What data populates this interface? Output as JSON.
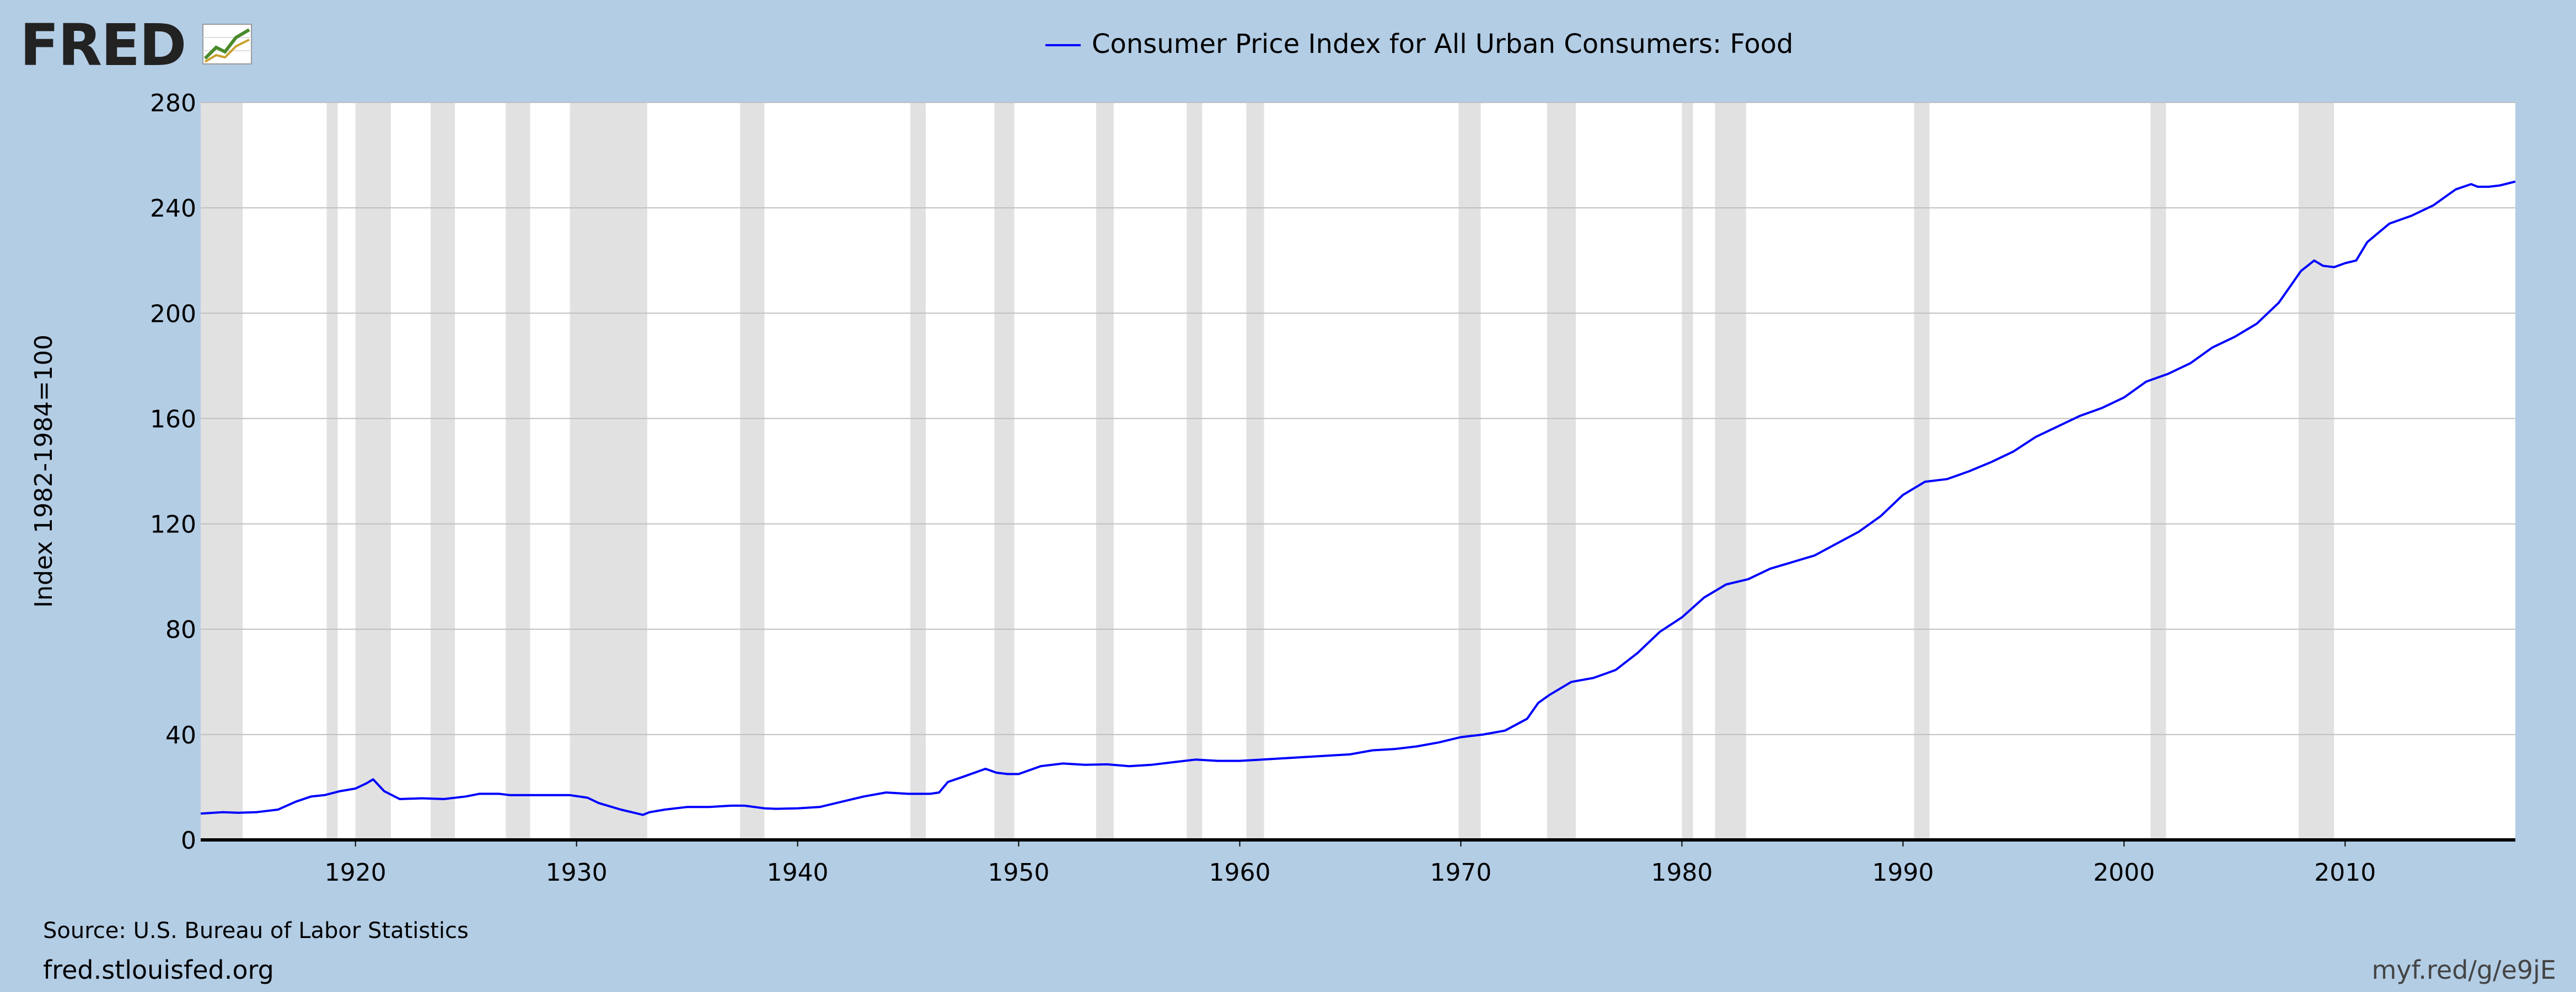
{
  "brand": {
    "logo_text": "FRED",
    "icon": "fred-line-chart-icon"
  },
  "source": "Source: U.S. Bureau of Labor Statistics",
  "site": "fred.stlouisfed.org",
  "short_link": "myf.red/g/e9jE",
  "colors": {
    "background": "#b3cde5",
    "plot_background": "#ffffff",
    "line": "#0000ff",
    "recession_shading": "#e1e1e1",
    "grid": "#c0c0c0",
    "text": "#000000"
  },
  "chart_data": {
    "type": "line",
    "title": "",
    "legend_position": "top-center",
    "xlabel": "",
    "ylabel": "Index 1982-1984=100",
    "xlim": [
      1913.0,
      2017.7
    ],
    "ylim": [
      0,
      280
    ],
    "yticks": [
      "0",
      "40",
      "80",
      "120",
      "160",
      "200",
      "240",
      "280"
    ],
    "xticks": [
      "1920",
      "1930",
      "1940",
      "1950",
      "1960",
      "1970",
      "1980",
      "1990",
      "2000",
      "2010"
    ],
    "grid": true,
    "shaded_regions_label": "recessions",
    "recessions": [
      [
        1913.0,
        1914.9
      ],
      [
        1918.7,
        1919.2
      ],
      [
        1920.0,
        1921.6
      ],
      [
        1923.4,
        1924.5
      ],
      [
        1926.8,
        1927.9
      ],
      [
        1929.7,
        1933.2
      ],
      [
        1937.4,
        1938.5
      ],
      [
        1945.1,
        1945.8
      ],
      [
        1948.9,
        1949.8
      ],
      [
        1953.5,
        1954.3
      ],
      [
        1957.6,
        1958.3
      ],
      [
        1960.3,
        1961.1
      ],
      [
        1969.9,
        1970.9
      ],
      [
        1973.9,
        1975.2
      ],
      [
        1980.0,
        1980.5
      ],
      [
        1981.5,
        1982.9
      ],
      [
        1990.5,
        1991.2
      ],
      [
        2001.2,
        2001.9
      ],
      [
        2007.9,
        2009.5
      ]
    ],
    "series": [
      {
        "name": "Consumer Price Index for All Urban Consumers: Food",
        "x": [
          1913.0,
          1914.0,
          1914.7,
          1915.5,
          1916.5,
          1917.3,
          1918.0,
          1918.6,
          1919.3,
          1920.0,
          1920.5,
          1920.8,
          1921.3,
          1922.0,
          1923.0,
          1924.0,
          1925.0,
          1925.6,
          1926.5,
          1927.0,
          1928.0,
          1929.0,
          1929.7,
          1930.5,
          1931.0,
          1932.0,
          1933.0,
          1933.3,
          1934.0,
          1935.0,
          1936.0,
          1937.0,
          1937.6,
          1938.5,
          1939.0,
          1940.0,
          1941.0,
          1942.0,
          1943.0,
          1944.0,
          1945.0,
          1946.0,
          1946.4,
          1946.8,
          1947.5,
          1948.5,
          1949.0,
          1949.5,
          1950.0,
          1951.0,
          1952.0,
          1953.0,
          1954.0,
          1955.0,
          1956.0,
          1957.0,
          1958.0,
          1959.0,
          1960.0,
          1961.0,
          1962.0,
          1963.0,
          1964.0,
          1965.0,
          1966.0,
          1967.0,
          1968.0,
          1969.0,
          1970.0,
          1971.0,
          1972.0,
          1973.0,
          1973.5,
          1974.0,
          1975.0,
          1976.0,
          1977.0,
          1978.0,
          1979.0,
          1980.0,
          1981.0,
          1982.0,
          1983.0,
          1984.0,
          1985.0,
          1986.0,
          1987.0,
          1988.0,
          1989.0,
          1990.0,
          1991.0,
          1992.0,
          1993.0,
          1994.0,
          1995.0,
          1996.0,
          1997.0,
          1998.0,
          1999.0,
          2000.0,
          2001.0,
          2002.0,
          2003.0,
          2004.0,
          2005.0,
          2006.0,
          2007.0,
          2008.0,
          2008.6,
          2009.0,
          2009.5,
          2010.0,
          2010.5,
          2011.0,
          2012.0,
          2013.0,
          2014.0,
          2015.0,
          2015.7,
          2016.0,
          2016.5,
          2017.0,
          2017.7
        ],
        "values": [
          10.0,
          10.5,
          10.3,
          10.5,
          11.5,
          14.5,
          16.5,
          17.0,
          18.5,
          19.5,
          21.5,
          23.0,
          18.5,
          15.5,
          15.8,
          15.5,
          16.5,
          17.5,
          17.5,
          17.0,
          17.0,
          17.0,
          17.0,
          16.0,
          14.0,
          11.5,
          9.5,
          10.5,
          11.5,
          12.5,
          12.5,
          13.0,
          13.0,
          12.0,
          11.8,
          12.0,
          12.5,
          14.5,
          16.5,
          18.0,
          17.5,
          17.5,
          18.0,
          22.0,
          24.0,
          27.0,
          25.5,
          25.0,
          25.0,
          28.0,
          29.0,
          28.5,
          28.7,
          28.0,
          28.5,
          29.5,
          30.5,
          30.0,
          30.0,
          30.5,
          31.0,
          31.5,
          32.0,
          32.5,
          34.0,
          34.5,
          35.5,
          37.0,
          39.0,
          40.0,
          41.5,
          46.0,
          52.0,
          55.0,
          60.0,
          61.5,
          64.5,
          71.0,
          79.0,
          84.5,
          92.0,
          97.0,
          99.0,
          103.0,
          105.5,
          108.0,
          112.5,
          117.0,
          123.0,
          131.0,
          136.0,
          137.0,
          140.0,
          143.5,
          147.5,
          153.0,
          157.0,
          161.0,
          164.0,
          168.0,
          174.0,
          177.0,
          181.0,
          187.0,
          191.0,
          196.0,
          204.0,
          216.0,
          220.0,
          218.0,
          217.5,
          219.0,
          220.0,
          227.0,
          234.0,
          237.0,
          241.0,
          247.0,
          249.0,
          248.0,
          248.0,
          248.5,
          250.0
        ]
      }
    ]
  }
}
